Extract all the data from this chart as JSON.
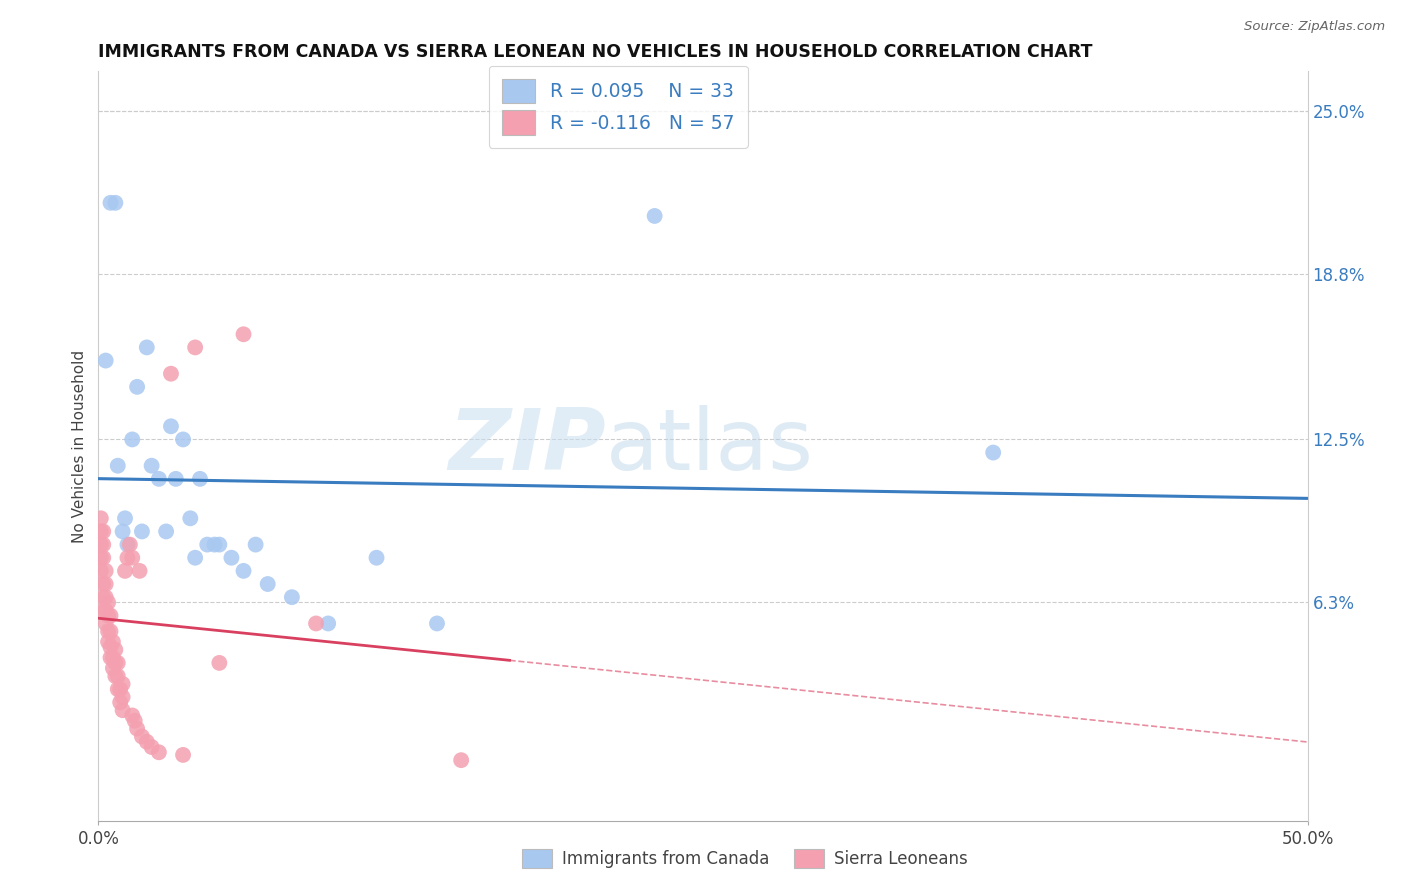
{
  "title": "IMMIGRANTS FROM CANADA VS SIERRA LEONEAN NO VEHICLES IN HOUSEHOLD CORRELATION CHART",
  "source": "Source: ZipAtlas.com",
  "ylabel_label": "No Vehicles in Household",
  "right_yticks": [
    "25.0%",
    "18.8%",
    "12.5%",
    "6.3%"
  ],
  "right_ytick_values": [
    0.25,
    0.188,
    0.125,
    0.063
  ],
  "bottom_legend": [
    "Immigrants from Canada",
    "Sierra Leoneans"
  ],
  "xmin": 0.0,
  "xmax": 0.5,
  "ymin": -0.02,
  "ymax": 0.265,
  "r_canada": 0.095,
  "n_canada": 33,
  "r_sierra": -0.116,
  "n_sierra": 57,
  "canada_color": "#a8c8f0",
  "sierra_color": "#f4a0b0",
  "canada_line_color": "#3a7cc0",
  "sierra_line_color": "#d94060",
  "sierra_line_solid_end": 0.17,
  "watermark_zip": "ZIP",
  "watermark_atlas": "atlas",
  "canada_x": [
    0.003,
    0.005,
    0.007,
    0.008,
    0.01,
    0.011,
    0.012,
    0.014,
    0.016,
    0.018,
    0.02,
    0.022,
    0.025,
    0.028,
    0.03,
    0.032,
    0.035,
    0.038,
    0.04,
    0.042,
    0.045,
    0.048,
    0.05,
    0.055,
    0.06,
    0.065,
    0.07,
    0.08,
    0.095,
    0.115,
    0.14,
    0.23,
    0.37
  ],
  "canada_y": [
    0.155,
    0.215,
    0.215,
    0.115,
    0.09,
    0.095,
    0.085,
    0.125,
    0.145,
    0.09,
    0.16,
    0.115,
    0.11,
    0.09,
    0.13,
    0.11,
    0.125,
    0.095,
    0.08,
    0.11,
    0.085,
    0.085,
    0.085,
    0.08,
    0.075,
    0.085,
    0.07,
    0.065,
    0.055,
    0.08,
    0.055,
    0.21,
    0.12
  ],
  "sierra_x": [
    0.001,
    0.001,
    0.001,
    0.001,
    0.001,
    0.002,
    0.002,
    0.002,
    0.002,
    0.002,
    0.002,
    0.003,
    0.003,
    0.003,
    0.003,
    0.003,
    0.004,
    0.004,
    0.004,
    0.004,
    0.005,
    0.005,
    0.005,
    0.005,
    0.006,
    0.006,
    0.006,
    0.007,
    0.007,
    0.007,
    0.008,
    0.008,
    0.008,
    0.009,
    0.009,
    0.01,
    0.01,
    0.01,
    0.011,
    0.012,
    0.013,
    0.014,
    0.014,
    0.015,
    0.016,
    0.017,
    0.018,
    0.02,
    0.022,
    0.025,
    0.03,
    0.035,
    0.04,
    0.05,
    0.06,
    0.09,
    0.15
  ],
  "sierra_y": [
    0.075,
    0.08,
    0.085,
    0.09,
    0.095,
    0.06,
    0.065,
    0.07,
    0.08,
    0.085,
    0.09,
    0.055,
    0.06,
    0.065,
    0.07,
    0.075,
    0.048,
    0.052,
    0.058,
    0.063,
    0.042,
    0.046,
    0.052,
    0.058,
    0.038,
    0.042,
    0.048,
    0.035,
    0.04,
    0.045,
    0.03,
    0.035,
    0.04,
    0.025,
    0.03,
    0.022,
    0.027,
    0.032,
    0.075,
    0.08,
    0.085,
    0.02,
    0.08,
    0.018,
    0.015,
    0.075,
    0.012,
    0.01,
    0.008,
    0.006,
    0.15,
    0.005,
    0.16,
    0.04,
    0.165,
    0.055,
    0.003
  ]
}
